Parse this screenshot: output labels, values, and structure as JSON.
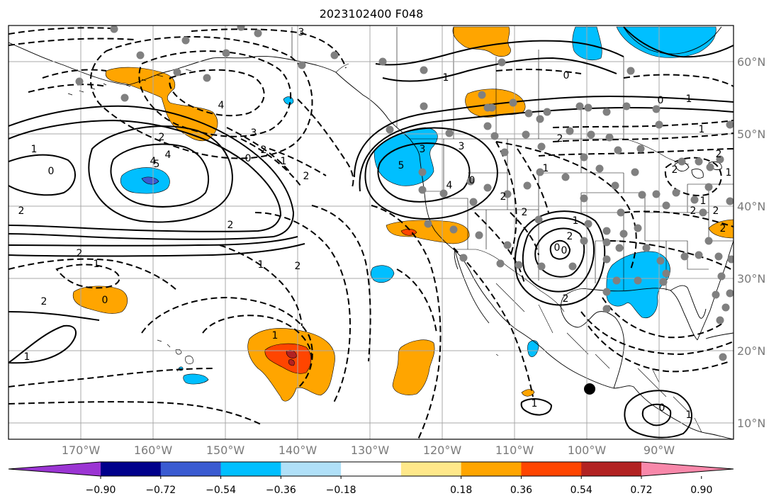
{
  "title": "2023102400 F048",
  "longitude_labels": [
    "170°W",
    "160°W",
    "150°W",
    "140°W",
    "130°W",
    "120°W",
    "110°W",
    "100°W",
    "90°W"
  ],
  "latitude_labels": [
    "60°N",
    "50°N",
    "40°N",
    "30°N",
    "20°N",
    "10°N"
  ],
  "colorbar": {
    "tick_labels": [
      "−0.90",
      "−0.72",
      "−0.54",
      "−0.36",
      "−0.18",
      "0.18",
      "0.36",
      "0.54",
      "0.72",
      "0.90"
    ],
    "colors": [
      "#9b35d3",
      "#00008b",
      "#3a5bd1",
      "#00bfff",
      "#b0e0f8",
      "#ffffff",
      "#ffe88a",
      "#ffa500",
      "#ff4500",
      "#b22222",
      "#f888aa"
    ]
  },
  "contour_labels": [
    "3",
    "1",
    "0",
    "4",
    "4",
    "2",
    "2",
    "3",
    "2",
    "1",
    "0",
    "1",
    "0",
    "2",
    "4",
    "5",
    "3",
    "5",
    "3",
    "4",
    "0",
    "1",
    "2",
    "0",
    "1",
    "1",
    "2",
    "2",
    "1",
    "2",
    "2",
    "2",
    "2",
    "2",
    "1",
    "2",
    "0",
    "1",
    "2",
    "1",
    "1",
    "2",
    "0",
    "2",
    "0",
    "1",
    "1",
    "2",
    "1",
    "0",
    "1",
    "2"
  ],
  "colors": {
    "map_border": "#000000",
    "grid": "#a8a8a8",
    "stations": "#808080"
  }
}
